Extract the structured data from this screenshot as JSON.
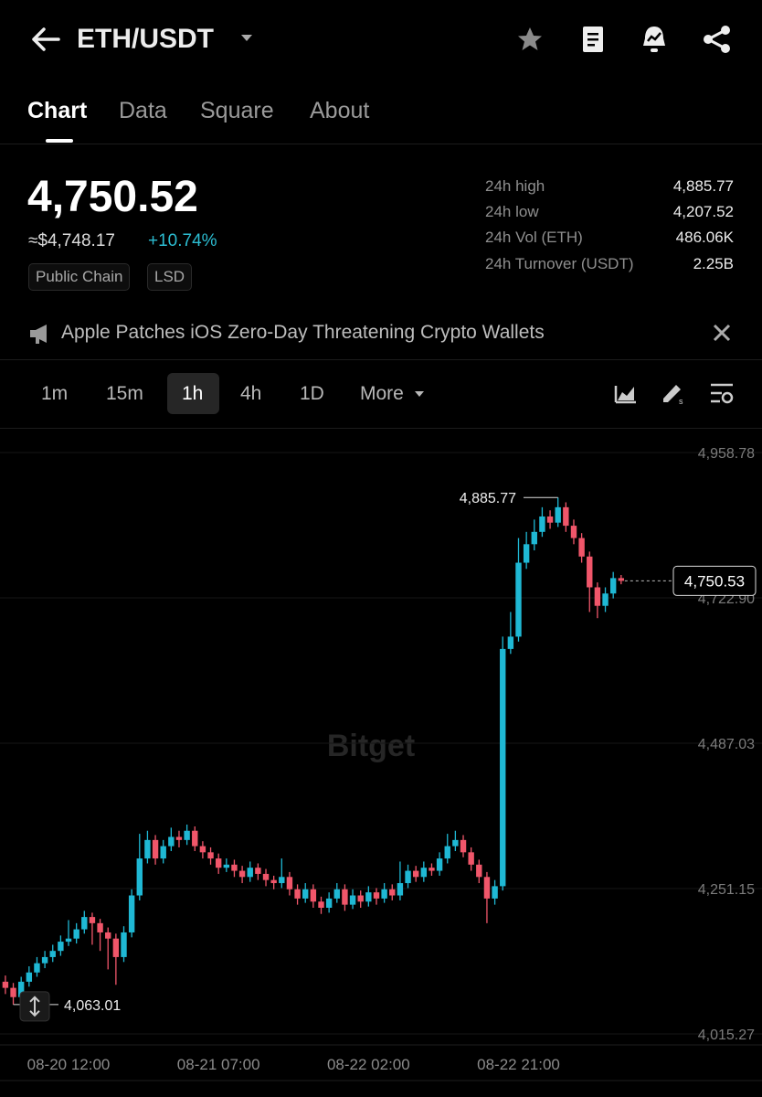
{
  "header": {
    "title": "ETH/USDT"
  },
  "tabs": [
    "Chart",
    "Data",
    "Square",
    "About"
  ],
  "price": {
    "last": "4,750.52",
    "usd": "≈$4,748.17",
    "change": "+10.74%",
    "tags": [
      "Public Chain",
      "LSD"
    ]
  },
  "stats": [
    {
      "label": "24h high",
      "value": "4,885.77"
    },
    {
      "label": "24h low",
      "value": "4,207.52"
    },
    {
      "label": "24h Vol (ETH)",
      "value": "486.06K"
    },
    {
      "label": "24h Turnover (USDT)",
      "value": "2.25B"
    }
  ],
  "news": "Apple Patches iOS Zero-Day Threatening Crypto Wallets",
  "intervals": [
    "1m",
    "15m",
    "1h",
    "4h",
    "1D",
    "More"
  ],
  "chart_data": {
    "type": "candlestick",
    "watermark": "Bitget",
    "up_color": "#1fb8d4",
    "down_color": "#f0566a",
    "grid": true,
    "ylim": [
      3994.5,
      4995.9
    ],
    "yticks": [
      {
        "value": 4958.78,
        "label": "4,958.78"
      },
      {
        "value": 4722.9,
        "label": "4,722.90"
      },
      {
        "value": 4487.03,
        "label": "4,487.03"
      },
      {
        "value": 4251.15,
        "label": "4,251.15"
      },
      {
        "value": 4015.27,
        "label": "4,015.27"
      }
    ],
    "high_label": "4,885.77",
    "low_label": "4,063.01",
    "last_price_label": "4,750.53",
    "categories": [
      null,
      null,
      null,
      null,
      null,
      null,
      null,
      null,
      "08-20 12:00",
      null,
      null,
      null,
      null,
      null,
      null,
      null,
      null,
      null,
      null,
      null,
      null,
      null,
      null,
      null,
      null,
      null,
      null,
      "08-21 07:00",
      null,
      null,
      null,
      null,
      null,
      null,
      null,
      null,
      null,
      null,
      null,
      null,
      null,
      null,
      null,
      null,
      null,
      null,
      "08-22 02:00",
      null,
      null,
      null,
      null,
      null,
      null,
      null,
      null,
      null,
      null,
      null,
      null,
      null,
      null,
      null,
      null,
      null,
      null,
      "08-22 21:00",
      null,
      null,
      null,
      null,
      null,
      null,
      null,
      null,
      null,
      null,
      null,
      null,
      null
    ],
    "open": [
      4100,
      4090,
      4075,
      4100,
      4115,
      4130,
      4140,
      4150,
      4165,
      4170,
      4185,
      4205,
      4195,
      4180,
      4170,
      4140,
      4180,
      4240,
      4300,
      4330,
      4300,
      4320,
      4335,
      4330,
      4345,
      4320,
      4310,
      4300,
      4285,
      4290,
      4280,
      4270,
      4285,
      4275,
      4265,
      4260,
      4270,
      4250,
      4235,
      4250,
      4230,
      4220,
      4235,
      4250,
      4225,
      4240,
      4230,
      4245,
      4235,
      4250,
      4240,
      4260,
      4280,
      4270,
      4285,
      4280,
      4300,
      4320,
      4330,
      4310,
      4290,
      4270,
      4235,
      4255,
      4640,
      4660,
      4780,
      4810,
      4830,
      4855,
      4845,
      4870,
      4840,
      4820,
      4790,
      4740,
      4710,
      4730,
      4755
    ],
    "high": [
      4110,
      4098,
      4108,
      4125,
      4140,
      4150,
      4160,
      4175,
      4200,
      4195,
      4215,
      4212,
      4202,
      4188,
      4178,
      4190,
      4250,
      4340,
      4345,
      4338,
      4330,
      4350,
      4345,
      4355,
      4352,
      4328,
      4318,
      4308,
      4300,
      4298,
      4288,
      4295,
      4292,
      4283,
      4272,
      4300,
      4278,
      4258,
      4260,
      4258,
      4238,
      4245,
      4260,
      4258,
      4250,
      4248,
      4255,
      4252,
      4260,
      4258,
      4295,
      4290,
      4288,
      4295,
      4292,
      4310,
      4340,
      4345,
      4338,
      4318,
      4298,
      4278,
      4265,
      4660,
      4700,
      4820,
      4830,
      4850,
      4870,
      4865,
      4885.77,
      4878,
      4850,
      4828,
      4798,
      4748,
      4740,
      4765,
      4760
    ],
    "low": [
      4080,
      4063.01,
      4068,
      4092,
      4108,
      4122,
      4132,
      4142,
      4158,
      4162,
      4178,
      4160,
      4150,
      4120,
      4095,
      4132,
      4172,
      4232,
      4292,
      4290,
      4292,
      4312,
      4318,
      4322,
      4312,
      4300,
      4290,
      4275,
      4278,
      4270,
      4260,
      4262,
      4265,
      4255,
      4250,
      4252,
      4240,
      4225,
      4228,
      4220,
      4210,
      4212,
      4228,
      4215,
      4218,
      4220,
      4222,
      4225,
      4228,
      4232,
      4232,
      4252,
      4262,
      4262,
      4272,
      4272,
      4292,
      4312,
      4302,
      4280,
      4260,
      4195,
      4225,
      4248,
      4632,
      4652,
      4770,
      4800,
      4822,
      4835,
      4838,
      4830,
      4810,
      4780,
      4700,
      4690,
      4700,
      4722,
      4745
    ],
    "close": [
      4090,
      4075,
      4100,
      4115,
      4130,
      4140,
      4150,
      4165,
      4170,
      4185,
      4205,
      4195,
      4180,
      4170,
      4140,
      4180,
      4240,
      4300,
      4330,
      4300,
      4320,
      4335,
      4330,
      4345,
      4320,
      4310,
      4300,
      4285,
      4290,
      4280,
      4270,
      4285,
      4275,
      4265,
      4260,
      4270,
      4250,
      4235,
      4250,
      4230,
      4220,
      4235,
      4250,
      4225,
      4240,
      4230,
      4245,
      4235,
      4250,
      4240,
      4260,
      4280,
      4270,
      4285,
      4280,
      4300,
      4320,
      4330,
      4310,
      4290,
      4270,
      4235,
      4255,
      4640,
      4660,
      4780,
      4810,
      4830,
      4855,
      4845,
      4870,
      4840,
      4820,
      4790,
      4740,
      4710,
      4730,
      4755,
      4750.53
    ]
  }
}
